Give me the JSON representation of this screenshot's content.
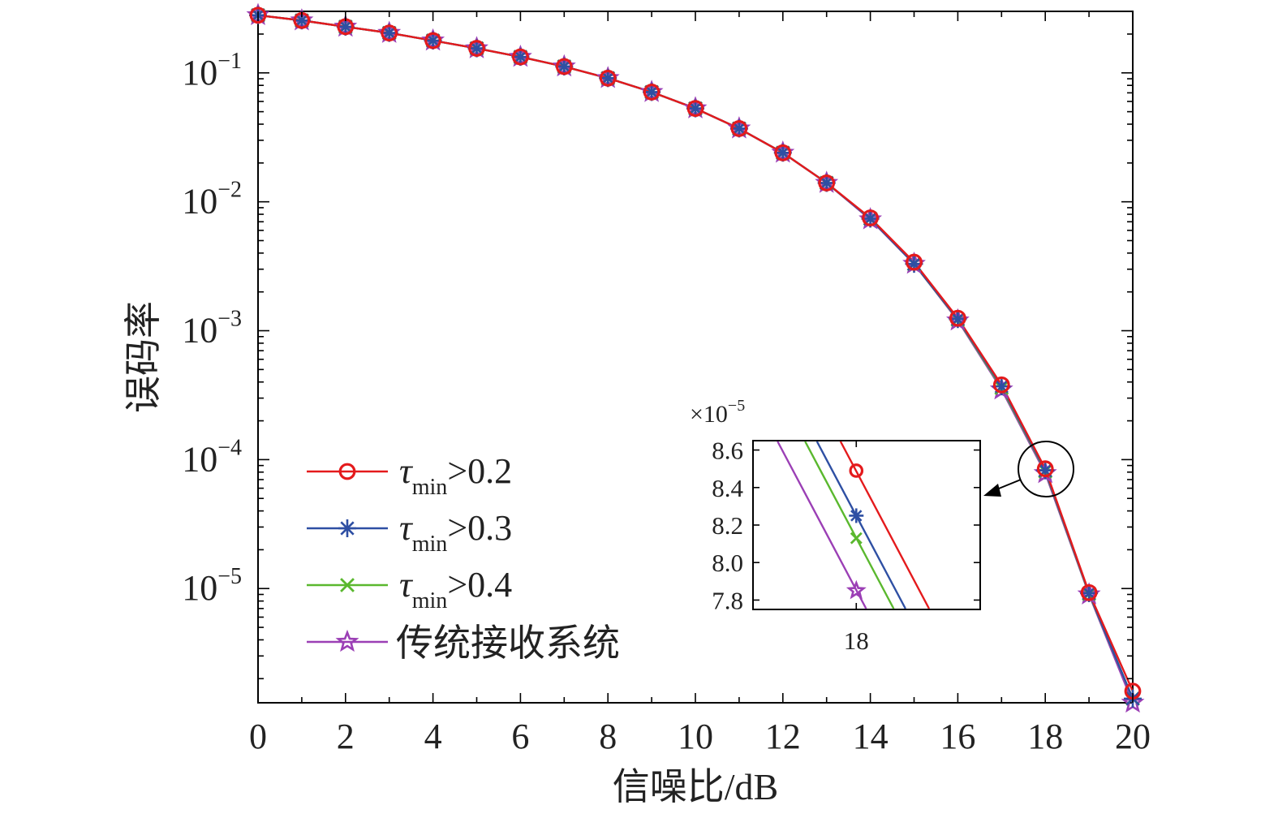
{
  "chart_data": [
    {
      "type": "line",
      "xlabel": "信噪比/dB",
      "ylabel": "误码率",
      "xlim": [
        0,
        20
      ],
      "ylim": [
        1.3e-06,
        0.3
      ],
      "yscale": "log",
      "x_ticks": [
        0,
        2,
        4,
        6,
        8,
        10,
        12,
        14,
        16,
        18,
        20
      ],
      "y_ticks": [
        {
          "value": 0.1,
          "base": "10",
          "exp": "−1"
        },
        {
          "value": 0.01,
          "base": "10",
          "exp": "−2"
        },
        {
          "value": 0.001,
          "base": "10",
          "exp": "−3"
        },
        {
          "value": 0.0001,
          "base": "10",
          "exp": "−4"
        },
        {
          "value": 1e-05,
          "base": "10",
          "exp": "−5"
        }
      ],
      "grid": false,
      "legend_position": "bottom-left",
      "x": [
        0,
        1,
        2,
        3,
        4,
        5,
        6,
        7,
        8,
        9,
        10,
        11,
        12,
        13,
        14,
        15,
        16,
        17,
        18,
        19,
        20
      ],
      "series": [
        {
          "legend_symbol": "τ",
          "legend_sub": "min",
          "legend_rest": ">0.2",
          "marker": "circle",
          "color": "#e41a1c",
          "values": [
            0.28,
            0.255,
            0.228,
            0.204,
            0.178,
            0.155,
            0.133,
            0.112,
            0.091,
            0.071,
            0.053,
            0.037,
            0.024,
            0.014,
            0.0075,
            0.0034,
            0.00125,
            0.00038,
            8.49e-05,
            9.3e-06,
            1.6e-06
          ]
        },
        {
          "legend_symbol": "τ",
          "legend_sub": "min",
          "legend_rest": ">0.3",
          "marker": "asterisk",
          "color": "#2e4fa3",
          "values": [
            0.28,
            0.255,
            0.228,
            0.204,
            0.178,
            0.155,
            0.133,
            0.112,
            0.091,
            0.071,
            0.053,
            0.037,
            0.024,
            0.014,
            0.0074,
            0.0033,
            0.00123,
            0.00037,
            8.25e-05,
            9.2e-06,
            1.4e-06
          ]
        },
        {
          "legend_symbol": "τ",
          "legend_sub": "min",
          "legend_rest": ">0.4",
          "marker": "x",
          "color": "#5ab82e",
          "values": [
            0.28,
            0.255,
            0.228,
            0.204,
            0.178,
            0.155,
            0.133,
            0.112,
            0.091,
            0.071,
            0.053,
            0.037,
            0.024,
            0.014,
            0.0074,
            0.0033,
            0.00122,
            0.00036,
            8.13e-05,
            9.1e-06,
            1.4e-06
          ]
        },
        {
          "legend_label": "传统接收系统",
          "marker": "star",
          "color": "#9b3fb5",
          "values": [
            0.28,
            0.255,
            0.228,
            0.204,
            0.178,
            0.155,
            0.133,
            0.112,
            0.091,
            0.071,
            0.053,
            0.037,
            0.024,
            0.014,
            0.0073,
            0.0033,
            0.0012,
            0.00035,
            7.85e-05,
            9e-06,
            1.3e-06
          ]
        }
      ]
    },
    {
      "type": "line",
      "role": "inset",
      "xlim": [
        17.5,
        18.6
      ],
      "ylim": [
        7.75,
        8.65
      ],
      "y_multiplier": "×10",
      "y_multiplier_exp": "−5",
      "x_ticks": [
        18
      ],
      "y_ticks": [
        "7.8",
        "8.0",
        "8.2",
        "8.4",
        "8.6"
      ],
      "series": [
        {
          "marker": "circle",
          "color": "#e41a1c",
          "x": [
            18
          ],
          "values": [
            8.49
          ]
        },
        {
          "marker": "asterisk",
          "color": "#2e4fa3",
          "x": [
            18
          ],
          "values": [
            8.25
          ]
        },
        {
          "marker": "x",
          "color": "#5ab82e",
          "x": [
            18
          ],
          "values": [
            8.13
          ]
        },
        {
          "marker": "star",
          "color": "#9b3fb5",
          "x": [
            18
          ],
          "values": [
            7.85
          ]
        }
      ]
    }
  ]
}
